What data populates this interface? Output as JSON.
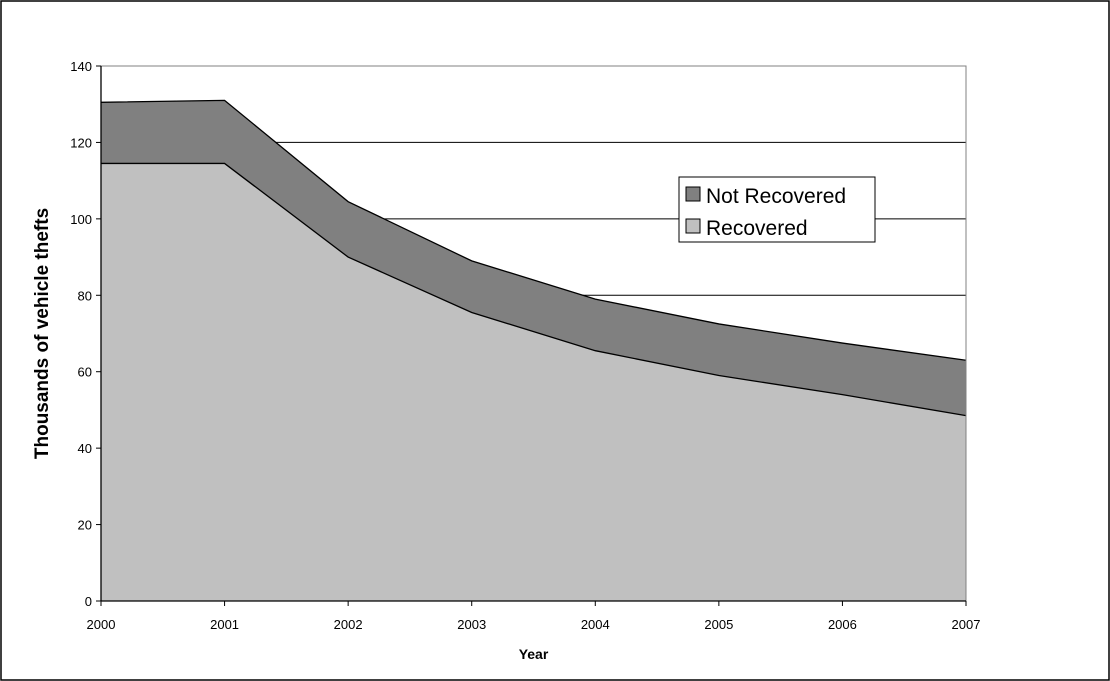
{
  "chart_data": {
    "type": "area",
    "stacked": true,
    "x": [
      2000,
      2001,
      2002,
      2003,
      2004,
      2005,
      2006,
      2007
    ],
    "x_tick_labels": [
      "2000",
      "2001",
      "2002",
      "2003",
      "2004",
      "2005",
      "2006",
      "2007"
    ],
    "xlabel": "Year",
    "ylabel": "Thousands of vehicle thefts",
    "ylim": [
      0,
      140
    ],
    "y_ticks": [
      0,
      20,
      40,
      60,
      80,
      100,
      120,
      140
    ],
    "y_tick_labels": [
      "0",
      "20",
      "40",
      "60",
      "80",
      "100",
      "120",
      "140"
    ],
    "grid": "horizontal",
    "legend": {
      "position": "right",
      "entries": [
        "Not Recovered",
        "Recovered"
      ]
    },
    "series": [
      {
        "name": "Recovered",
        "values": [
          114.5,
          114.5,
          90,
          75.5,
          65.5,
          59,
          54,
          48.5
        ]
      },
      {
        "name": "Not Recovered",
        "values": [
          16,
          16.5,
          14.5,
          13.5,
          13.5,
          13.5,
          13.5,
          14.5
        ]
      }
    ],
    "colors": {
      "Recovered": "#c0c0c0",
      "Not Recovered": "#808080"
    }
  }
}
